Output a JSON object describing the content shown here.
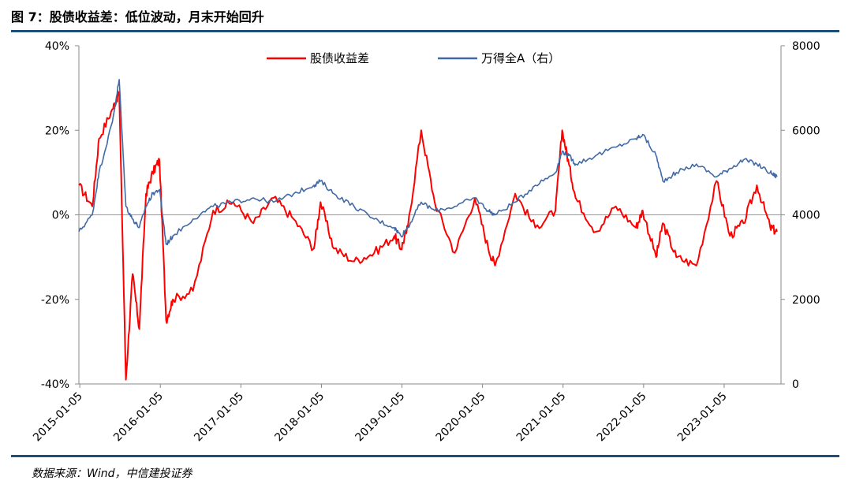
{
  "figure": {
    "title": "图 7：股债收益差：低位波动，月末开始回升",
    "source": "数据来源：Wind，中信建投证券"
  },
  "chart_data": {
    "type": "line",
    "title": "图 7：股债收益差：低位波动，月末开始回升",
    "xlabel": "",
    "ylabel": "",
    "x_ticks": [
      "2015-01-05",
      "2016-01-05",
      "2017-01-05",
      "2018-01-05",
      "2019-01-05",
      "2020-01-05",
      "2021-01-05",
      "2022-01-05",
      "2023-01-05"
    ],
    "y_left_ticks": [
      "40%",
      "20%",
      "0%",
      "-20%",
      "-40%"
    ],
    "y_right_ticks": [
      "8000",
      "6000",
      "4000",
      "2000",
      "0"
    ],
    "ylim_left": [
      -40,
      40
    ],
    "ylim_right": [
      0,
      8000
    ],
    "x": [
      "2015-01",
      "2015-03",
      "2015-04",
      "2015-06",
      "2015-07",
      "2015-08",
      "2015-09",
      "2015-10",
      "2015-11",
      "2015-12",
      "2016-01",
      "2016-02",
      "2016-03",
      "2016-06",
      "2016-09",
      "2016-12",
      "2017-03",
      "2017-06",
      "2017-09",
      "2017-12",
      "2018-01",
      "2018-03",
      "2018-06",
      "2018-09",
      "2018-12",
      "2019-01",
      "2019-02",
      "2019-04",
      "2019-06",
      "2019-09",
      "2019-12",
      "2020-02",
      "2020-03",
      "2020-06",
      "2020-09",
      "2020-12",
      "2021-01",
      "2021-02",
      "2021-03",
      "2021-06",
      "2021-09",
      "2021-12",
      "2022-01",
      "2022-03",
      "2022-04",
      "2022-06",
      "2022-09",
      "2022-12",
      "2023-02",
      "2023-04",
      "2023-06",
      "2023-08",
      "2023-09"
    ],
    "series": [
      {
        "name": "股债收益差",
        "axis": "left",
        "color": "#ff0000",
        "values": [
          7,
          2,
          18,
          25,
          29,
          -39,
          -14,
          -27,
          5,
          10,
          13,
          -25,
          -20,
          -18,
          1,
          3,
          -2,
          4,
          -1,
          -8,
          3,
          -8,
          -11,
          -9,
          -5,
          -8,
          -3,
          20,
          3,
          -9,
          4,
          -8,
          -12,
          5,
          -3,
          1,
          20,
          12,
          4,
          -4,
          2,
          -3,
          1,
          -10,
          -2,
          -10,
          -12,
          8,
          -5,
          -2,
          7,
          -3,
          -4
        ]
      },
      {
        "name": "万得全A（右）",
        "axis": "right",
        "color": "#4169a5",
        "values": [
          3600,
          4000,
          5000,
          6200,
          7200,
          4200,
          3900,
          3700,
          4200,
          4500,
          4600,
          3300,
          3500,
          3900,
          4200,
          4300,
          4400,
          4300,
          4500,
          4700,
          4800,
          4500,
          4200,
          3900,
          3700,
          3500,
          3700,
          4300,
          4100,
          4200,
          4400,
          4100,
          4000,
          4300,
          4700,
          5000,
          5500,
          5400,
          5200,
          5400,
          5600,
          5800,
          5900,
          5400,
          4800,
          5000,
          5200,
          4900,
          5100,
          5300,
          5200,
          5000,
          4900
        ]
      }
    ],
    "legend": [
      "股债收益差",
      "万得全A（右）"
    ],
    "legend_position": "top-center",
    "zero_line": true,
    "grid": false
  }
}
